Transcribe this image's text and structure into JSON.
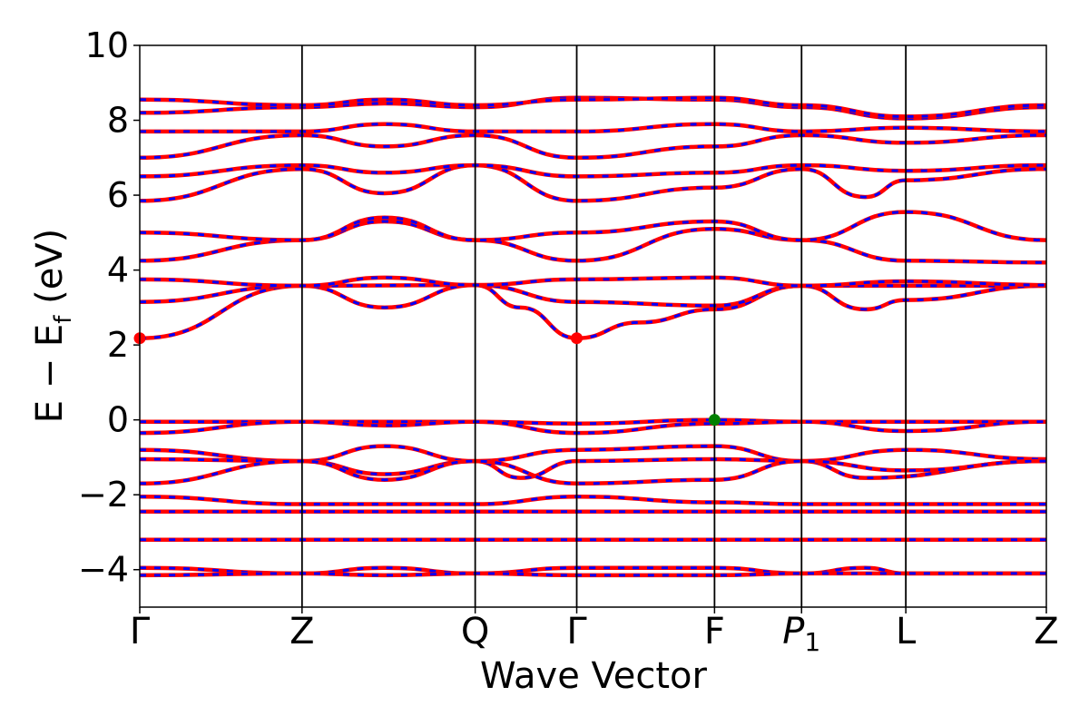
{
  "chart_data": {
    "type": "line",
    "xlabel": "Wave Vector",
    "ylabel": "E − E_f (eV)",
    "ylabel_parts": {
      "main": "E  −  E",
      "sub": "f",
      "unit": " (eV)"
    },
    "ylim": [
      -5,
      10
    ],
    "yticks": [
      "−4",
      "−2",
      "0",
      "2",
      "4",
      "6",
      "8",
      "10"
    ],
    "ytick_values": [
      -4,
      -2,
      0,
      2,
      4,
      6,
      8,
      10
    ],
    "k_ticks": [
      {
        "label": "Γ",
        "k": 0.0
      },
      {
        "label": "Z",
        "k": 0.179
      },
      {
        "label": "Q",
        "k": 0.37
      },
      {
        "label": "Γ",
        "k": 0.482
      },
      {
        "label": "F",
        "k": 0.634
      },
      {
        "label": "P",
        "sub": "1",
        "k": 0.73
      },
      {
        "label": "L",
        "k": 0.845
      },
      {
        "label": "Z",
        "k": 1.0
      }
    ],
    "grid": false,
    "line_style": "red solid bands overlaid with blue dashed bands",
    "colors": {
      "band_solid": "#ff0000",
      "band_dashed": "#0000ff",
      "cbm_marker": "#ff0000",
      "vbm_marker": "#008000",
      "frame": "#000000"
    },
    "series": [
      {
        "values": [
          [
            0.0,
            2.18
          ],
          [
            0.179,
            3.58
          ],
          [
            0.37,
            3.6
          ],
          [
            0.42,
            3.0
          ],
          [
            0.482,
            2.18
          ],
          [
            0.55,
            2.6
          ],
          [
            0.634,
            2.95
          ],
          [
            0.73,
            3.58
          ],
          [
            0.845,
            3.58
          ],
          [
            1.0,
            3.58
          ]
        ]
      },
      {
        "values": [
          [
            0.0,
            3.15
          ],
          [
            0.179,
            3.58
          ],
          [
            0.27,
            3.0
          ],
          [
            0.37,
            3.6
          ],
          [
            0.482,
            3.15
          ],
          [
            0.634,
            3.05
          ],
          [
            0.73,
            3.58
          ],
          [
            0.8,
            2.95
          ],
          [
            0.845,
            3.2
          ],
          [
            1.0,
            3.58
          ]
        ]
      },
      {
        "values": [
          [
            0.0,
            3.75
          ],
          [
            0.179,
            3.58
          ],
          [
            0.27,
            3.8
          ],
          [
            0.37,
            3.6
          ],
          [
            0.482,
            3.75
          ],
          [
            0.634,
            3.8
          ],
          [
            0.73,
            3.58
          ],
          [
            0.845,
            3.7
          ],
          [
            1.0,
            3.6
          ]
        ]
      },
      {
        "values": [
          [
            0.0,
            4.25
          ],
          [
            0.179,
            4.8
          ],
          [
            0.27,
            5.3
          ],
          [
            0.37,
            4.8
          ],
          [
            0.482,
            4.25
          ],
          [
            0.634,
            5.1
          ],
          [
            0.73,
            4.8
          ],
          [
            0.845,
            4.25
          ],
          [
            1.0,
            4.2
          ]
        ]
      },
      {
        "values": [
          [
            0.0,
            5.0
          ],
          [
            0.179,
            4.8
          ],
          [
            0.27,
            5.4
          ],
          [
            0.37,
            4.8
          ],
          [
            0.482,
            5.0
          ],
          [
            0.634,
            5.3
          ],
          [
            0.73,
            4.8
          ],
          [
            0.845,
            5.55
          ],
          [
            1.0,
            4.8
          ]
        ]
      },
      {
        "values": [
          [
            0.0,
            5.85
          ],
          [
            0.179,
            6.7
          ],
          [
            0.27,
            6.05
          ],
          [
            0.37,
            6.8
          ],
          [
            0.482,
            5.85
          ],
          [
            0.634,
            6.2
          ],
          [
            0.73,
            6.7
          ],
          [
            0.8,
            5.95
          ],
          [
            0.845,
            6.4
          ],
          [
            1.0,
            6.7
          ]
        ]
      },
      {
        "values": [
          [
            0.0,
            6.5
          ],
          [
            0.179,
            6.8
          ],
          [
            0.27,
            6.6
          ],
          [
            0.37,
            6.8
          ],
          [
            0.482,
            6.5
          ],
          [
            0.634,
            6.6
          ],
          [
            0.73,
            6.8
          ],
          [
            0.845,
            6.65
          ],
          [
            1.0,
            6.8
          ]
        ]
      },
      {
        "values": [
          [
            0.0,
            7.0
          ],
          [
            0.179,
            7.6
          ],
          [
            0.27,
            7.3
          ],
          [
            0.37,
            7.6
          ],
          [
            0.482,
            7.0
          ],
          [
            0.634,
            7.3
          ],
          [
            0.73,
            7.6
          ],
          [
            0.845,
            7.4
          ],
          [
            1.0,
            7.6
          ]
        ]
      },
      {
        "values": [
          [
            0.0,
            7.7
          ],
          [
            0.179,
            7.7
          ],
          [
            0.27,
            7.9
          ],
          [
            0.37,
            7.7
          ],
          [
            0.482,
            7.7
          ],
          [
            0.634,
            7.9
          ],
          [
            0.73,
            7.7
          ],
          [
            0.845,
            7.8
          ],
          [
            1.0,
            7.7
          ]
        ]
      },
      {
        "values": [
          [
            0.0,
            8.2
          ],
          [
            0.179,
            8.35
          ],
          [
            0.27,
            8.45
          ],
          [
            0.37,
            8.35
          ],
          [
            0.482,
            8.6
          ],
          [
            0.634,
            8.55
          ],
          [
            0.73,
            8.35
          ],
          [
            0.845,
            8.05
          ],
          [
            1.0,
            8.35
          ]
        ]
      },
      {
        "values": [
          [
            0.0,
            8.55
          ],
          [
            0.179,
            8.4
          ],
          [
            0.27,
            8.55
          ],
          [
            0.37,
            8.4
          ],
          [
            0.482,
            8.55
          ],
          [
            0.634,
            8.6
          ],
          [
            0.73,
            8.4
          ],
          [
            0.845,
            8.1
          ],
          [
            1.0,
            8.4
          ]
        ]
      },
      {
        "values": [
          [
            0.0,
            -0.05
          ],
          [
            0.179,
            -0.05
          ],
          [
            0.27,
            -0.05
          ],
          [
            0.37,
            -0.05
          ],
          [
            0.482,
            -0.1
          ],
          [
            0.634,
            0.0
          ],
          [
            0.73,
            -0.05
          ],
          [
            0.845,
            -0.05
          ],
          [
            1.0,
            -0.05
          ]
        ]
      },
      {
        "values": [
          [
            0.0,
            -0.35
          ],
          [
            0.179,
            -0.05
          ],
          [
            0.27,
            -0.15
          ],
          [
            0.37,
            -0.05
          ],
          [
            0.482,
            -0.35
          ],
          [
            0.634,
            -0.1
          ],
          [
            0.73,
            -0.05
          ],
          [
            0.845,
            -0.3
          ],
          [
            1.0,
            -0.05
          ]
        ]
      },
      {
        "values": [
          [
            0.0,
            -0.8
          ],
          [
            0.179,
            -1.1
          ],
          [
            0.27,
            -0.7
          ],
          [
            0.37,
            -1.1
          ],
          [
            0.482,
            -0.8
          ],
          [
            0.634,
            -0.7
          ],
          [
            0.73,
            -1.1
          ],
          [
            0.845,
            -0.8
          ],
          [
            1.0,
            -1.05
          ]
        ]
      },
      {
        "values": [
          [
            0.0,
            -1.05
          ],
          [
            0.179,
            -1.1
          ],
          [
            0.27,
            -1.45
          ],
          [
            0.37,
            -1.1
          ],
          [
            0.42,
            -1.55
          ],
          [
            0.482,
            -1.1
          ],
          [
            0.634,
            -1.05
          ],
          [
            0.73,
            -1.1
          ],
          [
            0.8,
            -1.55
          ],
          [
            1.0,
            -1.1
          ]
        ]
      },
      {
        "values": [
          [
            0.0,
            -1.7
          ],
          [
            0.179,
            -1.1
          ],
          [
            0.27,
            -1.6
          ],
          [
            0.37,
            -1.1
          ],
          [
            0.482,
            -1.7
          ],
          [
            0.634,
            -1.6
          ],
          [
            0.73,
            -1.1
          ],
          [
            0.845,
            -1.35
          ],
          [
            1.0,
            -1.1
          ]
        ]
      },
      {
        "values": [
          [
            0.0,
            -2.05
          ],
          [
            0.179,
            -2.25
          ],
          [
            0.37,
            -2.25
          ],
          [
            0.482,
            -2.05
          ],
          [
            0.634,
            -2.2
          ],
          [
            0.73,
            -2.25
          ],
          [
            1.0,
            -2.25
          ]
        ]
      },
      {
        "values": [
          [
            0.0,
            -2.45
          ],
          [
            0.179,
            -2.45
          ],
          [
            0.37,
            -2.45
          ],
          [
            0.482,
            -2.45
          ],
          [
            0.73,
            -2.45
          ],
          [
            1.0,
            -2.45
          ]
        ]
      },
      {
        "values": [
          [
            0.0,
            -3.2
          ],
          [
            0.179,
            -3.2
          ],
          [
            0.37,
            -3.2
          ],
          [
            0.482,
            -3.2
          ],
          [
            0.73,
            -3.2
          ],
          [
            1.0,
            -3.2
          ]
        ]
      },
      {
        "values": [
          [
            0.0,
            -3.95
          ],
          [
            0.179,
            -4.1
          ],
          [
            0.27,
            -3.95
          ],
          [
            0.37,
            -4.1
          ],
          [
            0.482,
            -3.95
          ],
          [
            0.634,
            -3.95
          ],
          [
            0.73,
            -4.1
          ],
          [
            0.8,
            -3.95
          ],
          [
            0.845,
            -4.1
          ],
          [
            1.0,
            -4.1
          ]
        ]
      },
      {
        "values": [
          [
            0.0,
            -4.15
          ],
          [
            0.179,
            -4.1
          ],
          [
            0.27,
            -4.15
          ],
          [
            0.37,
            -4.1
          ],
          [
            0.482,
            -4.15
          ],
          [
            0.634,
            -4.15
          ],
          [
            0.73,
            -4.1
          ],
          [
            0.845,
            -4.1
          ],
          [
            1.0,
            -4.1
          ]
        ]
      }
    ],
    "markers": [
      {
        "type": "cbm",
        "x": 0.0,
        "y": 2.18
      },
      {
        "type": "cbm",
        "x": 0.482,
        "y": 2.18
      },
      {
        "type": "vbm",
        "x": 0.634,
        "y": 0.0
      }
    ]
  }
}
